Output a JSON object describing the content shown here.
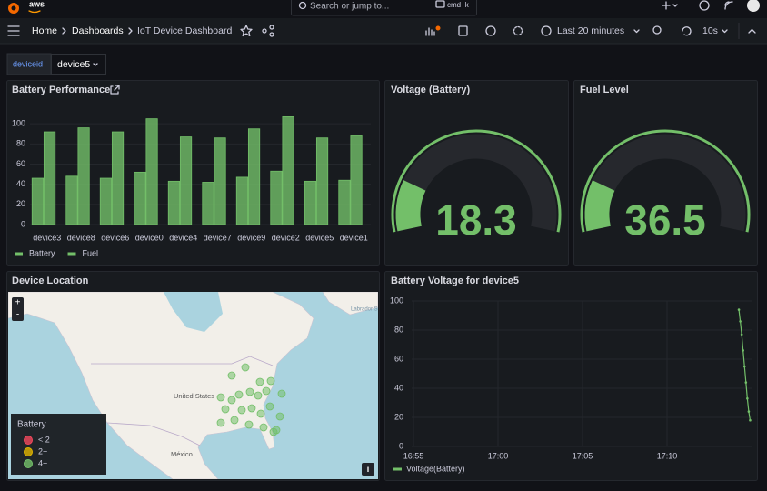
{
  "topbar": {
    "brand": "aws",
    "search": "Search or jump to...",
    "shortcut": "cmd+k"
  },
  "breadcrumbs": [
    "Home",
    "Dashboards",
    "IoT Device Dashboard"
  ],
  "toolbar": {
    "time_range": "Last 20 minutes",
    "refresh": "10s"
  },
  "variables": [
    {
      "name": "deviceid",
      "value": "device5"
    }
  ],
  "panels": {
    "battery_performance": {
      "type": "bar",
      "title": "Battery Performance",
      "categories": [
        "device3",
        "device8",
        "device6",
        "device0",
        "device4",
        "device7",
        "device9",
        "device2",
        "device5",
        "device1"
      ],
      "series": [
        {
          "name": "Battery",
          "color": "#73bf69",
          "values": [
            46,
            48,
            46,
            52,
            43,
            42,
            47,
            53,
            43,
            44
          ]
        },
        {
          "name": "Fuel",
          "color": "#73bf69",
          "values": [
            92,
            96,
            92,
            105,
            87,
            86,
            95,
            107,
            86,
            88
          ]
        }
      ],
      "ylim": [
        0,
        120
      ],
      "yticks": [
        0,
        20,
        40,
        60,
        80,
        100
      ],
      "grid": true
    },
    "voltage": {
      "type": "gauge",
      "title": "Voltage (Battery)",
      "value": 18.3,
      "min": 0,
      "max": 100,
      "color": "#73bf69"
    },
    "fuel": {
      "type": "gauge",
      "title": "Fuel Level",
      "value": 36.5,
      "min": 0,
      "max": 200,
      "color": "#73bf69"
    },
    "device_location": {
      "type": "map",
      "title": "Device Location",
      "place_labels": [
        "Labrador Sea",
        "United States",
        "México"
      ],
      "zoom_controls": [
        "+",
        "-"
      ],
      "info_button": "i",
      "legend": {
        "title": "Battery",
        "items": [
          {
            "label": "< 2",
            "color": "#f2495c"
          },
          {
            "label": "2+",
            "color": "#e0b400"
          },
          {
            "label": "4+",
            "color": "#73bf69"
          }
        ]
      }
    },
    "battery_voltage": {
      "type": "line",
      "title": "Battery Voltage for device5",
      "x": [
        "17:14:15",
        "17:14:20",
        "17:14:25",
        "17:14:30",
        "17:14:35",
        "17:14:40",
        "17:14:45",
        "17:14:50",
        "17:14:55"
      ],
      "series": [
        {
          "name": "Voltage(Battery)",
          "color": "#73bf69",
          "values": [
            94,
            86,
            77,
            66,
            55,
            44,
            33,
            24,
            18
          ]
        }
      ],
      "xlim": [
        "16:55:00",
        "17:15:00"
      ],
      "xticks": [
        {
          "value": "16:55:00",
          "label": "16:55"
        },
        {
          "value": "17:00:00",
          "label": "17:00"
        },
        {
          "value": "17:05:00",
          "label": "17:05"
        },
        {
          "value": "17:10:00",
          "label": "17:10"
        }
      ],
      "ylim": [
        0,
        100
      ],
      "yticks": [
        0,
        20,
        40,
        60,
        80,
        100
      ],
      "grid": true
    }
  }
}
